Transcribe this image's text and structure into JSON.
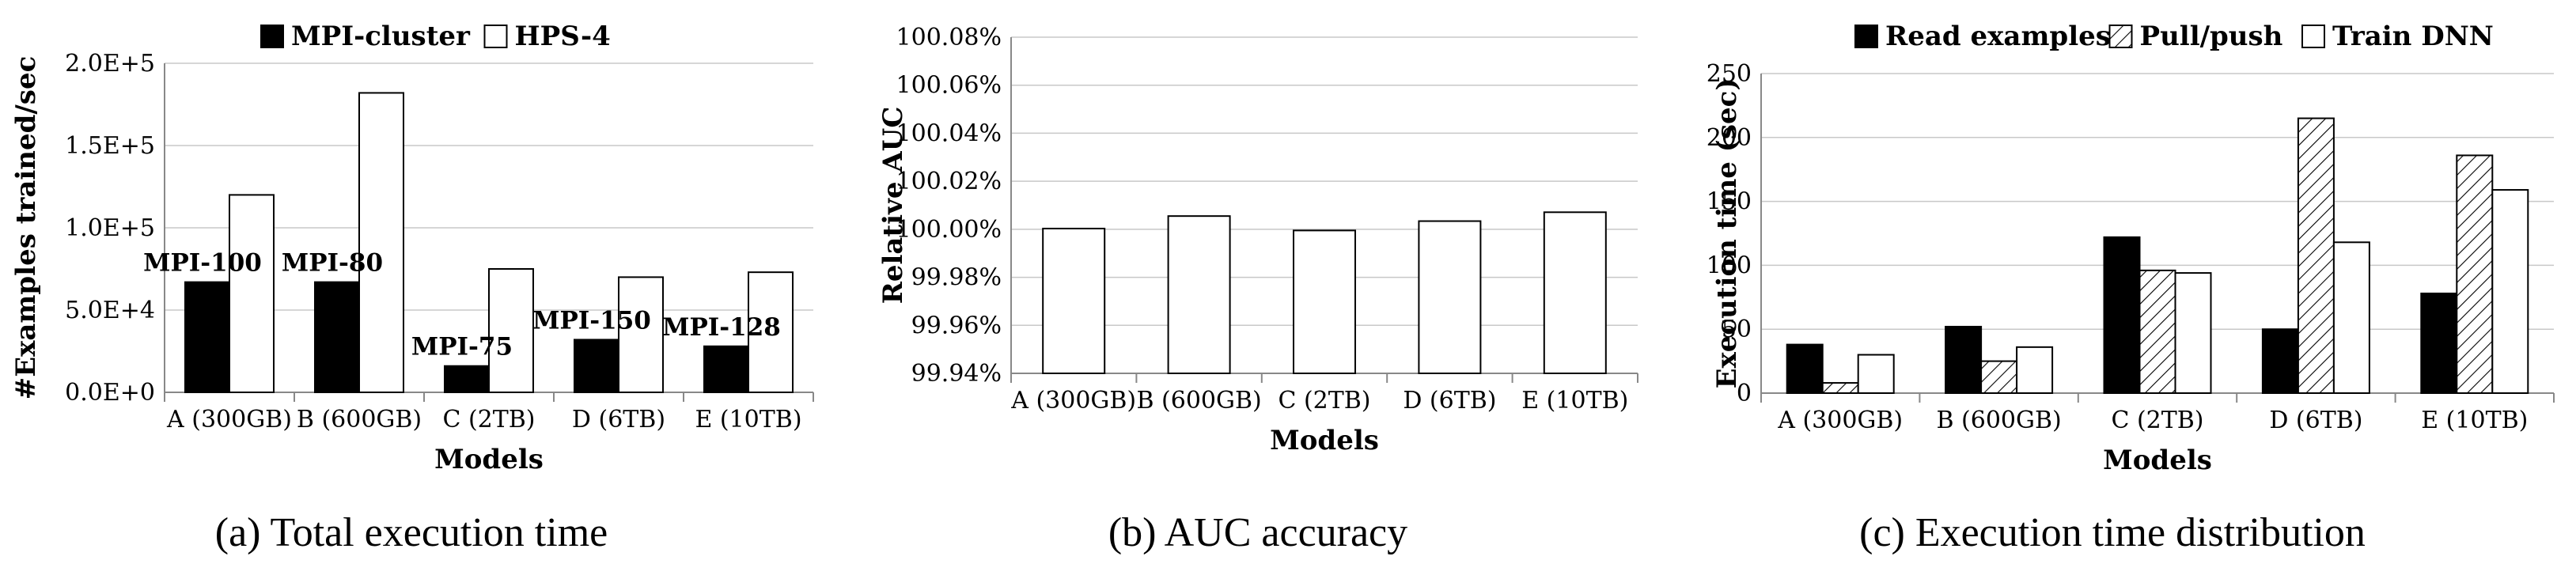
{
  "chart_data": [
    {
      "type": "bar",
      "caption": "(a) Total execution time",
      "xlabel": "Models",
      "ylabel": "#Examples trained/sec",
      "categories": [
        "A (300GB)",
        "B (600GB)",
        "C (2TB)",
        "D (6TB)",
        "E (10TB)"
      ],
      "series": [
        {
          "name": "MPI-cluster",
          "values": [
            67000,
            67000,
            16000,
            32000,
            28000
          ],
          "color": "#000000",
          "fill": "solid"
        },
        {
          "name": "HPS-4",
          "values": [
            120000,
            182000,
            75000,
            70000,
            73000
          ],
          "color": "#ffffff",
          "fill": "outline"
        }
      ],
      "annotations": [
        "MPI-100",
        "MPI-80",
        "MPI-75",
        "MPI-150",
        "MPI-128"
      ],
      "yticks": [
        "0.0E+0",
        "5.0E+4",
        "1.0E+5",
        "1.5E+5",
        "2.0E+5"
      ],
      "ylim": [
        0,
        200000
      ],
      "grid": true,
      "legend": "top"
    },
    {
      "type": "bar",
      "caption": "(b) AUC accuracy",
      "xlabel": "Models",
      "ylabel": "Relative AUC",
      "categories": [
        "A (300GB)",
        "B (600GB)",
        "C (2TB)",
        "D (6TB)",
        "E (10TB)"
      ],
      "series": [
        {
          "values": [
            100.0003,
            100.0055,
            99.9995,
            100.0034,
            100.0071
          ],
          "color": "#ffffff",
          "fill": "outline"
        }
      ],
      "yticks": [
        "99.94%",
        "99.96%",
        "99.98%",
        "100.00%",
        "100.02%",
        "100.04%",
        "100.06%",
        "100.08%"
      ],
      "ylim": [
        99.94,
        100.08
      ],
      "grid": true
    },
    {
      "type": "bar",
      "caption": "(c) Execution time distribution",
      "xlabel": "Models",
      "ylabel": "Execution time (sec)",
      "categories": [
        "A (300GB)",
        "B (600GB)",
        "C (2TB)",
        "D (6TB)",
        "E (10TB)"
      ],
      "series": [
        {
          "name": "Read examples",
          "values": [
            38,
            52,
            122,
            50,
            78
          ],
          "color": "#000000",
          "fill": "solid"
        },
        {
          "name": "Pull/push",
          "values": [
            8,
            25,
            96,
            215,
            186
          ],
          "color": "#ffffff",
          "fill": "hatch"
        },
        {
          "name": "Train DNN",
          "values": [
            30,
            36,
            94,
            118,
            159
          ],
          "color": "#ffffff",
          "fill": "outline"
        }
      ],
      "yticks": [
        "0",
        "50",
        "100",
        "150",
        "200",
        "250"
      ],
      "ylim": [
        0,
        250
      ],
      "grid": true,
      "legend": "top"
    }
  ]
}
